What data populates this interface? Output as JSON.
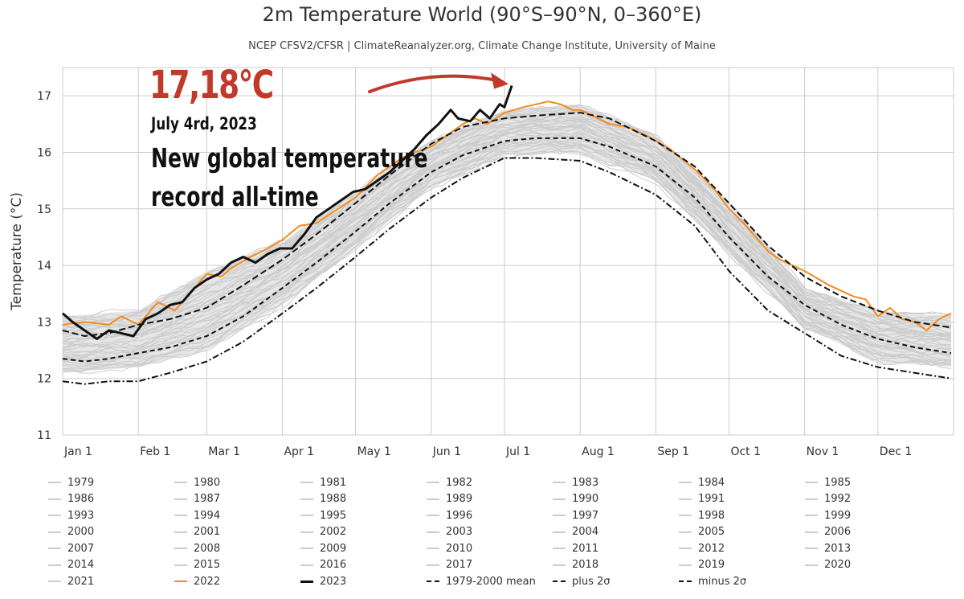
{
  "title": "2m Temperature World (90°S–90°N, 0–360°E)",
  "subtitle": "NCEP CFSV2/CFSR | ClimateReanalyzer.org, Climate Change Institute, University of Maine",
  "annotation": {
    "value": "17,18°C",
    "date": "July 4rd, 2023",
    "line1": "New global temperature",
    "line2": "record all-time",
    "arrow_color": "#c0392b"
  },
  "colors": {
    "background_years": "#cccccc",
    "year_2022": "#f28a1e",
    "year_2023": "#111111",
    "stat_lines": "#111111",
    "grid": "#cccccc",
    "annotation_red": "#c0392b"
  },
  "chart_data": {
    "type": "line",
    "title": "2m Temperature World (90°S–90°N, 0–360°E)",
    "ylabel": "Temperature (°C)",
    "xlabel": "",
    "ylim": [
      11,
      17.5
    ],
    "xlim": [
      1,
      366
    ],
    "grid": true,
    "x_tick_labels": [
      "Jan 1",
      "Feb 1",
      "Mar 1",
      "Apr 1",
      "May 1",
      "Jun 1",
      "Jul 1",
      "Aug 1",
      "Sep 1",
      "Oct 1",
      "Nov 1",
      "Dec 1"
    ],
    "x_tick_days": [
      1,
      32,
      60,
      91,
      121,
      152,
      182,
      213,
      244,
      274,
      305,
      335
    ],
    "y_ticks": [
      11,
      12,
      13,
      14,
      15,
      16,
      17
    ],
    "background_years": [
      "1979",
      "1980",
      "1981",
      "1982",
      "1983",
      "1984",
      "1985",
      "1986",
      "1987",
      "1988",
      "1989",
      "1990",
      "1991",
      "1992",
      "1993",
      "1994",
      "1995",
      "1996",
      "1997",
      "1998",
      "1999",
      "2000",
      "2001",
      "2002",
      "2003",
      "2004",
      "2005",
      "2006",
      "2007",
      "2008",
      "2009",
      "2010",
      "2011",
      "2012",
      "2013",
      "2014",
      "2015",
      "2016",
      "2017",
      "2018",
      "2019",
      "2020",
      "2021"
    ],
    "background_envelope": {
      "x": [
        1,
        32,
        60,
        91,
        121,
        152,
        182,
        213,
        244,
        274,
        305,
        335,
        365
      ],
      "low": [
        12.1,
        12.2,
        12.5,
        13.3,
        14.3,
        15.4,
        15.95,
        16.0,
        15.5,
        14.2,
        12.9,
        12.3,
        12.2
      ],
      "high": [
        13.1,
        13.2,
        13.9,
        14.4,
        15.3,
        16.2,
        16.75,
        16.85,
        16.3,
        15.1,
        13.6,
        13.2,
        13.1
      ]
    },
    "series": [
      {
        "name": "2022",
        "color": "#f28a1e",
        "x": [
          1,
          10,
          20,
          25,
          32,
          40,
          47,
          55,
          60,
          66,
          70,
          78,
          85,
          91,
          98,
          105,
          112,
          121,
          130,
          140,
          145,
          152,
          160,
          165,
          170,
          175,
          182,
          190,
          195,
          200,
          205,
          210,
          213,
          218,
          225,
          232,
          240,
          244,
          250,
          260,
          268,
          274,
          280,
          290,
          295,
          305,
          315,
          320,
          325,
          330,
          335,
          340,
          345,
          350,
          355,
          360,
          365
        ],
        "y": [
          12.95,
          13.0,
          12.95,
          13.1,
          12.95,
          13.35,
          13.2,
          13.6,
          13.85,
          13.8,
          13.95,
          14.15,
          14.3,
          14.45,
          14.7,
          14.75,
          14.95,
          15.2,
          15.6,
          15.9,
          16.0,
          16.1,
          16.35,
          16.5,
          16.6,
          16.5,
          16.7,
          16.8,
          16.85,
          16.9,
          16.85,
          16.75,
          16.75,
          16.65,
          16.5,
          16.45,
          16.3,
          16.2,
          16.05,
          15.7,
          15.35,
          15.0,
          14.75,
          14.25,
          14.1,
          13.9,
          13.65,
          13.55,
          13.45,
          13.4,
          13.1,
          13.25,
          13.05,
          13.0,
          12.85,
          13.05,
          13.15
        ]
      },
      {
        "name": "2023",
        "color": "#111111",
        "x": [
          1,
          5,
          10,
          15,
          20,
          25,
          30,
          35,
          40,
          45,
          50,
          55,
          60,
          65,
          70,
          75,
          80,
          85,
          90,
          95,
          100,
          105,
          110,
          115,
          120,
          125,
          130,
          135,
          140,
          145,
          150,
          155,
          160,
          163,
          168,
          172,
          176,
          180,
          182,
          185
        ],
        "y": [
          13.15,
          13.0,
          12.85,
          12.7,
          12.85,
          12.8,
          12.75,
          13.05,
          13.15,
          13.3,
          13.35,
          13.6,
          13.75,
          13.85,
          14.05,
          14.15,
          14.05,
          14.2,
          14.3,
          14.3,
          14.55,
          14.85,
          15.0,
          15.15,
          15.3,
          15.35,
          15.5,
          15.65,
          15.85,
          16.05,
          16.3,
          16.5,
          16.75,
          16.6,
          16.55,
          16.75,
          16.6,
          16.85,
          16.8,
          17.18
        ]
      },
      {
        "name": "1979-2000 mean",
        "color": "#111111",
        "dash": "6,4",
        "x": [
          1,
          10,
          20,
          32,
          45,
          60,
          75,
          91,
          105,
          121,
          135,
          152,
          165,
          182,
          195,
          213,
          225,
          244,
          260,
          274,
          290,
          305,
          320,
          335,
          350,
          365
        ],
        "y": [
          12.35,
          12.3,
          12.35,
          12.45,
          12.55,
          12.75,
          13.1,
          13.6,
          14.05,
          14.6,
          15.1,
          15.65,
          15.95,
          16.2,
          16.25,
          16.25,
          16.1,
          15.75,
          15.2,
          14.5,
          13.8,
          13.3,
          12.95,
          12.7,
          12.55,
          12.45
        ]
      },
      {
        "name": "plus 2σ",
        "color": "#111111",
        "dash": "8,4",
        "x": [
          1,
          10,
          20,
          32,
          45,
          60,
          75,
          91,
          105,
          121,
          135,
          152,
          165,
          182,
          195,
          213,
          225,
          244,
          260,
          274,
          290,
          305,
          320,
          335,
          350,
          365
        ],
        "y": [
          12.85,
          12.75,
          12.8,
          12.95,
          13.05,
          13.25,
          13.65,
          14.1,
          14.55,
          15.1,
          15.6,
          16.15,
          16.45,
          16.6,
          16.65,
          16.7,
          16.6,
          16.2,
          15.75,
          15.1,
          14.35,
          13.8,
          13.45,
          13.2,
          13.0,
          12.9
        ]
      },
      {
        "name": "minus 2σ",
        "color": "#111111",
        "dash": "8,3,2,3",
        "x": [
          1,
          10,
          20,
          32,
          45,
          60,
          75,
          91,
          105,
          121,
          135,
          152,
          165,
          182,
          195,
          213,
          225,
          244,
          260,
          274,
          290,
          305,
          320,
          335,
          350,
          365
        ],
        "y": [
          11.95,
          11.9,
          11.95,
          11.95,
          12.1,
          12.3,
          12.65,
          13.15,
          13.6,
          14.15,
          14.65,
          15.2,
          15.55,
          15.9,
          15.9,
          15.85,
          15.65,
          15.25,
          14.7,
          13.9,
          13.2,
          12.8,
          12.4,
          12.2,
          12.1,
          12.0
        ]
      }
    ],
    "legend": {
      "position": "bottom",
      "items": [
        "1979",
        "1980",
        "1981",
        "1982",
        "1983",
        "1984",
        "1985",
        "1986",
        "1987",
        "1988",
        "1989",
        "1990",
        "1991",
        "1992",
        "1993",
        "1994",
        "1995",
        "1996",
        "1997",
        "1998",
        "1999",
        "2000",
        "2001",
        "2002",
        "2003",
        "2004",
        "2005",
        "2006",
        "2007",
        "2008",
        "2009",
        "2010",
        "2011",
        "2012",
        "2013",
        "2014",
        "2015",
        "2016",
        "2017",
        "2018",
        "2019",
        "2020",
        "2021",
        "2022",
        "2023",
        "1979-2000 mean",
        "plus 2σ",
        "minus 2σ"
      ]
    }
  }
}
